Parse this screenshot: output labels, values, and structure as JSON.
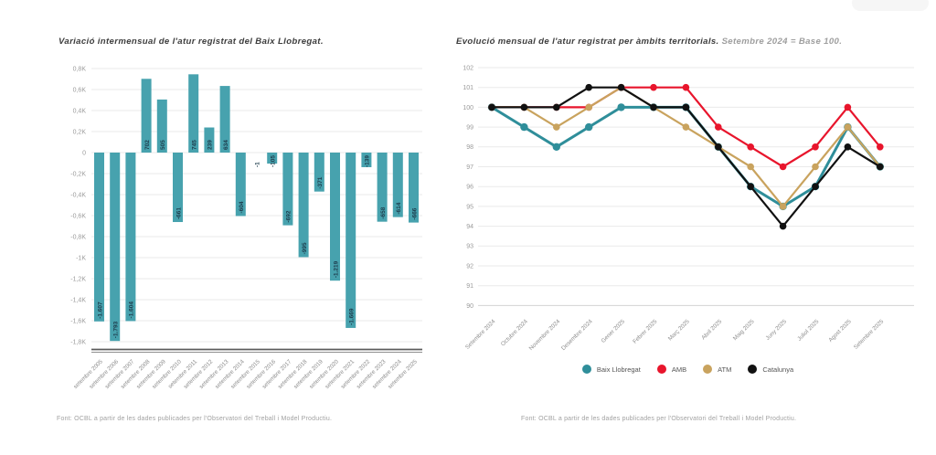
{
  "page": {
    "background": "#ffffff"
  },
  "left_chart": {
    "footer": "Font: OCBL a partir de les dades publicades per l'Observatori del Treball i Model Productiu."
  },
  "right_chart": {
    "footer": "Font: OCBL a partir de les dades publicades per l'Observatori del Treball i Model Productiu.",
    "legend": [
      {
        "label": "Baix Llobregat",
        "color": "#2f8e9a"
      },
      {
        "label": "AMB",
        "color": "#e8152c"
      },
      {
        "label": "ATM",
        "color": "#c9a35e"
      },
      {
        "label": "Catalunya",
        "color": "#111111"
      }
    ]
  },
  "chart_data": [
    {
      "type": "bar",
      "title": "Variació intermensual de l'atur registrat del Baix Llobregat.",
      "footer": "Font: OCBL a partir de les dades publicades per l'Observatori del Treball i Model Productiu.",
      "categories": [
        "setembre 2005",
        "setembre 2006",
        "setembre 2007",
        "setembre 2008",
        "setembre 2009",
        "setembre 2010",
        "setembre 2011",
        "setembre 2012",
        "setembre 2013",
        "setembre 2014",
        "setembre 2015",
        "setembre 2016",
        "setembre 2017",
        "setembre 2018",
        "setembre 2019",
        "setembre 2020",
        "setembre 2021",
        "setembre 2022",
        "setembre 2023",
        "setembre 2024",
        "setembre 2025"
      ],
      "values": [
        -1607,
        -1793,
        -1604,
        702,
        505,
        -661,
        745,
        239,
        634,
        -604,
        -1,
        -105,
        -692,
        -995,
        -371,
        -1219,
        -1669,
        -139,
        -658,
        -614,
        -666
      ],
      "labels": [
        "-1.607",
        "-1.793",
        "-1.604",
        "702",
        "505",
        "-661",
        "745",
        "239",
        "634",
        "-604",
        "-1",
        "-105",
        "-692",
        "-995",
        "-371",
        "-1.219",
        "-1.669",
        "-139",
        "-658",
        "-614",
        "-666"
      ],
      "yticks": [
        "0,8K",
        "0,6K",
        "0,4K",
        "0,2K",
        "0",
        "-0,2K",
        "-0,4K",
        "-0,6K",
        "-0,8K",
        "-1K",
        "-1,2K",
        "-1,4K",
        "-1,6K",
        "-1,8K"
      ],
      "ylim": [
        -1800,
        800
      ],
      "xlabel": "",
      "ylabel": "",
      "grid": "horizontal",
      "bar_color": "#47a2ae",
      "value_label_color": "#1d3c4c"
    },
    {
      "type": "line",
      "title": "Evolució mensual de l'atur registrat per àmbits territorials.",
      "subtitle": "Setembre 2024 = Base 100.",
      "footer": "Font: OCBL a partir de les dades publicades per l'Observatori del Treball i Model Productiu.",
      "x": [
        "Setembre 2024",
        "Octubre 2024",
        "Novembre 2024",
        "Desembre 2024",
        "Gener 2025",
        "Febrer 2025",
        "Març 2025",
        "Abril 2025",
        "Maig 2025",
        "Juny 2025",
        "Juliol 2025",
        "Agost 2025",
        "Setembre 2025"
      ],
      "yticks": [
        "102",
        "101",
        "100",
        "99",
        "98",
        "97",
        "96",
        "95",
        "94",
        "93",
        "92",
        "91",
        "90"
      ],
      "ylim": [
        90,
        102
      ],
      "grid": "horizontal",
      "legend_position": "bottom",
      "series": [
        {
          "name": "Baix Llobregat",
          "color": "#2f8e9a",
          "values": [
            100,
            99,
            98,
            99,
            100,
            100,
            100,
            98,
            96,
            95,
            96,
            99,
            97
          ]
        },
        {
          "name": "AMB",
          "color": "#e8152c",
          "values": [
            100,
            100,
            100,
            100,
            101,
            101,
            101,
            99,
            98,
            97,
            98,
            100,
            98
          ]
        },
        {
          "name": "ATM",
          "color": "#c9a35e",
          "values": [
            100,
            100,
            99,
            100,
            101,
            100,
            99,
            98,
            97,
            95,
            97,
            99,
            97
          ]
        },
        {
          "name": "Catalunya",
          "color": "#111111",
          "values": [
            100,
            100,
            100,
            101,
            101,
            100,
            100,
            98,
            96,
            94,
            96,
            98,
            97
          ]
        }
      ]
    }
  ]
}
